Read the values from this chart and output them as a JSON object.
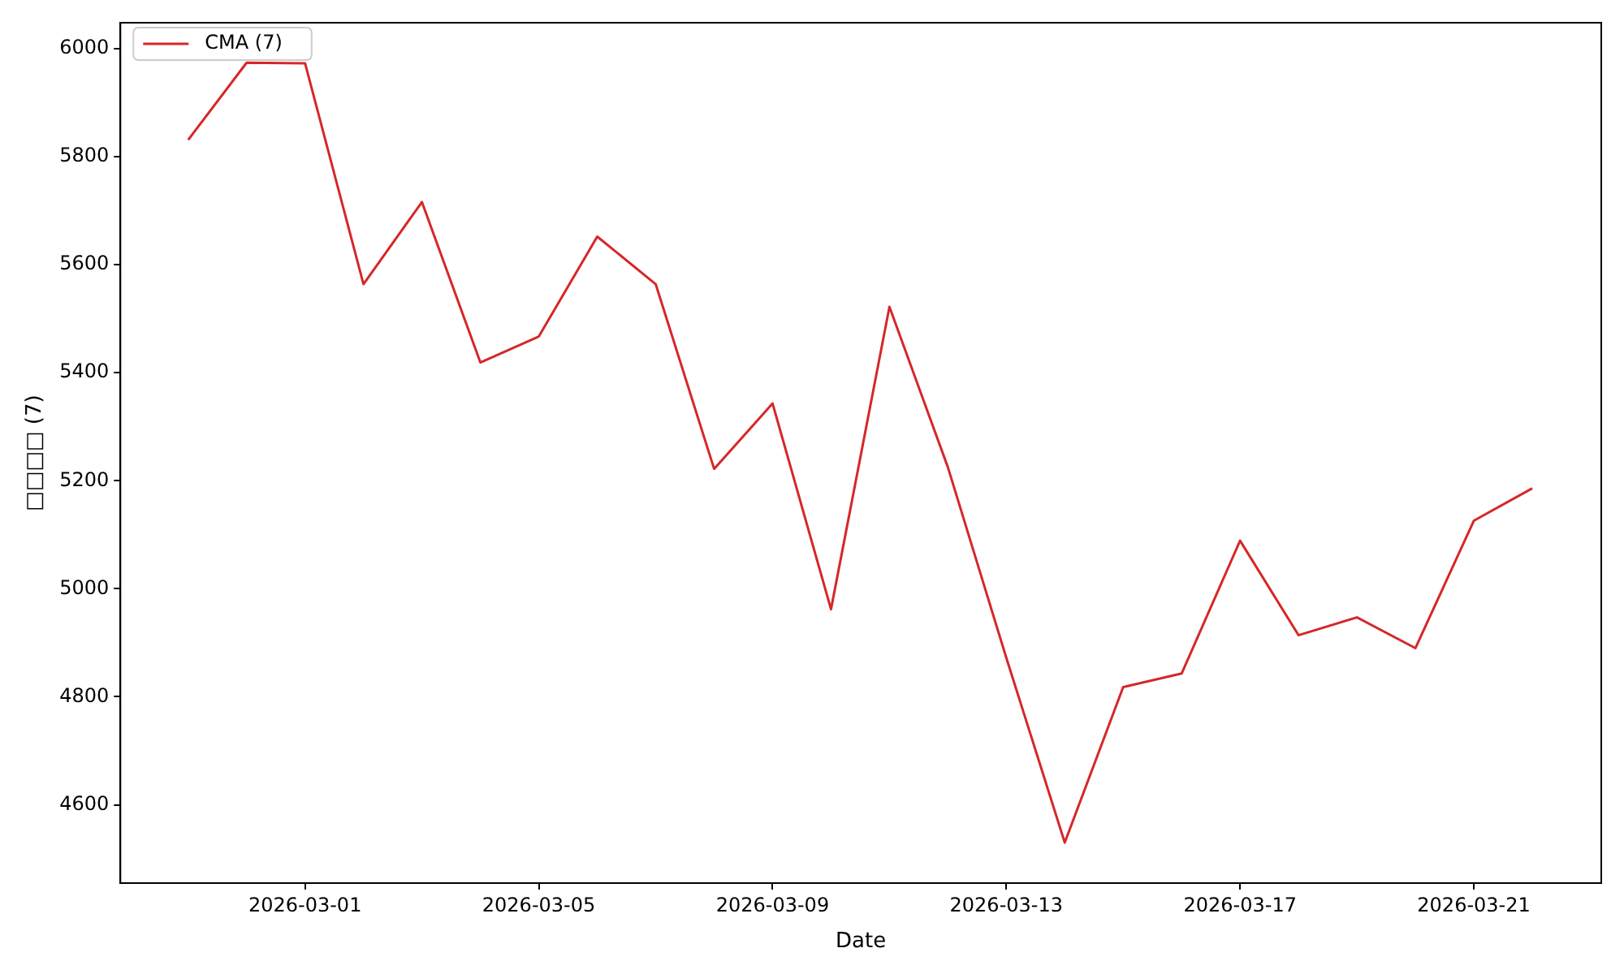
{
  "chart_data": {
    "type": "line",
    "xlabel": "Date",
    "ylabel": "□□□□ (7)",
    "x": [
      "2026-02-27",
      "2026-02-28",
      "2026-03-01",
      "2026-03-02",
      "2026-03-03",
      "2026-03-04",
      "2026-03-05",
      "2026-03-06",
      "2026-03-07",
      "2026-03-08",
      "2026-03-09",
      "2026-03-10",
      "2026-03-11",
      "2026-03-12",
      "2026-03-13",
      "2026-03-14",
      "2026-03-15",
      "2026-03-16",
      "2026-03-17",
      "2026-03-18",
      "2026-03-19",
      "2026-03-20",
      "2026-03-21",
      "2026-03-22"
    ],
    "series": [
      {
        "name": "CMA (7)",
        "color": "#d62728",
        "values": [
          5831,
          5974,
          5973,
          5564,
          5716,
          5419,
          5467,
          5652,
          5564,
          5222,
          5343,
          4962,
          5522,
          5225,
          4872,
          4530,
          4818,
          4843,
          5089,
          4914,
          4947,
          4890,
          5126,
          5186
        ]
      }
    ],
    "xlim": [
      "2026-02-25T20:10",
      "2026-03-23T04:20"
    ],
    "ylim": [
      4455,
      6048
    ],
    "xticks": [
      "2026-03-01",
      "2026-03-05",
      "2026-03-09",
      "2026-03-13",
      "2026-03-17",
      "2026-03-21"
    ],
    "yticks": [
      4600,
      4800,
      5000,
      5200,
      5400,
      5600,
      5800,
      6000
    ],
    "grid": false,
    "legend": "top left",
    "marker": "none",
    "line_style": "solid"
  }
}
